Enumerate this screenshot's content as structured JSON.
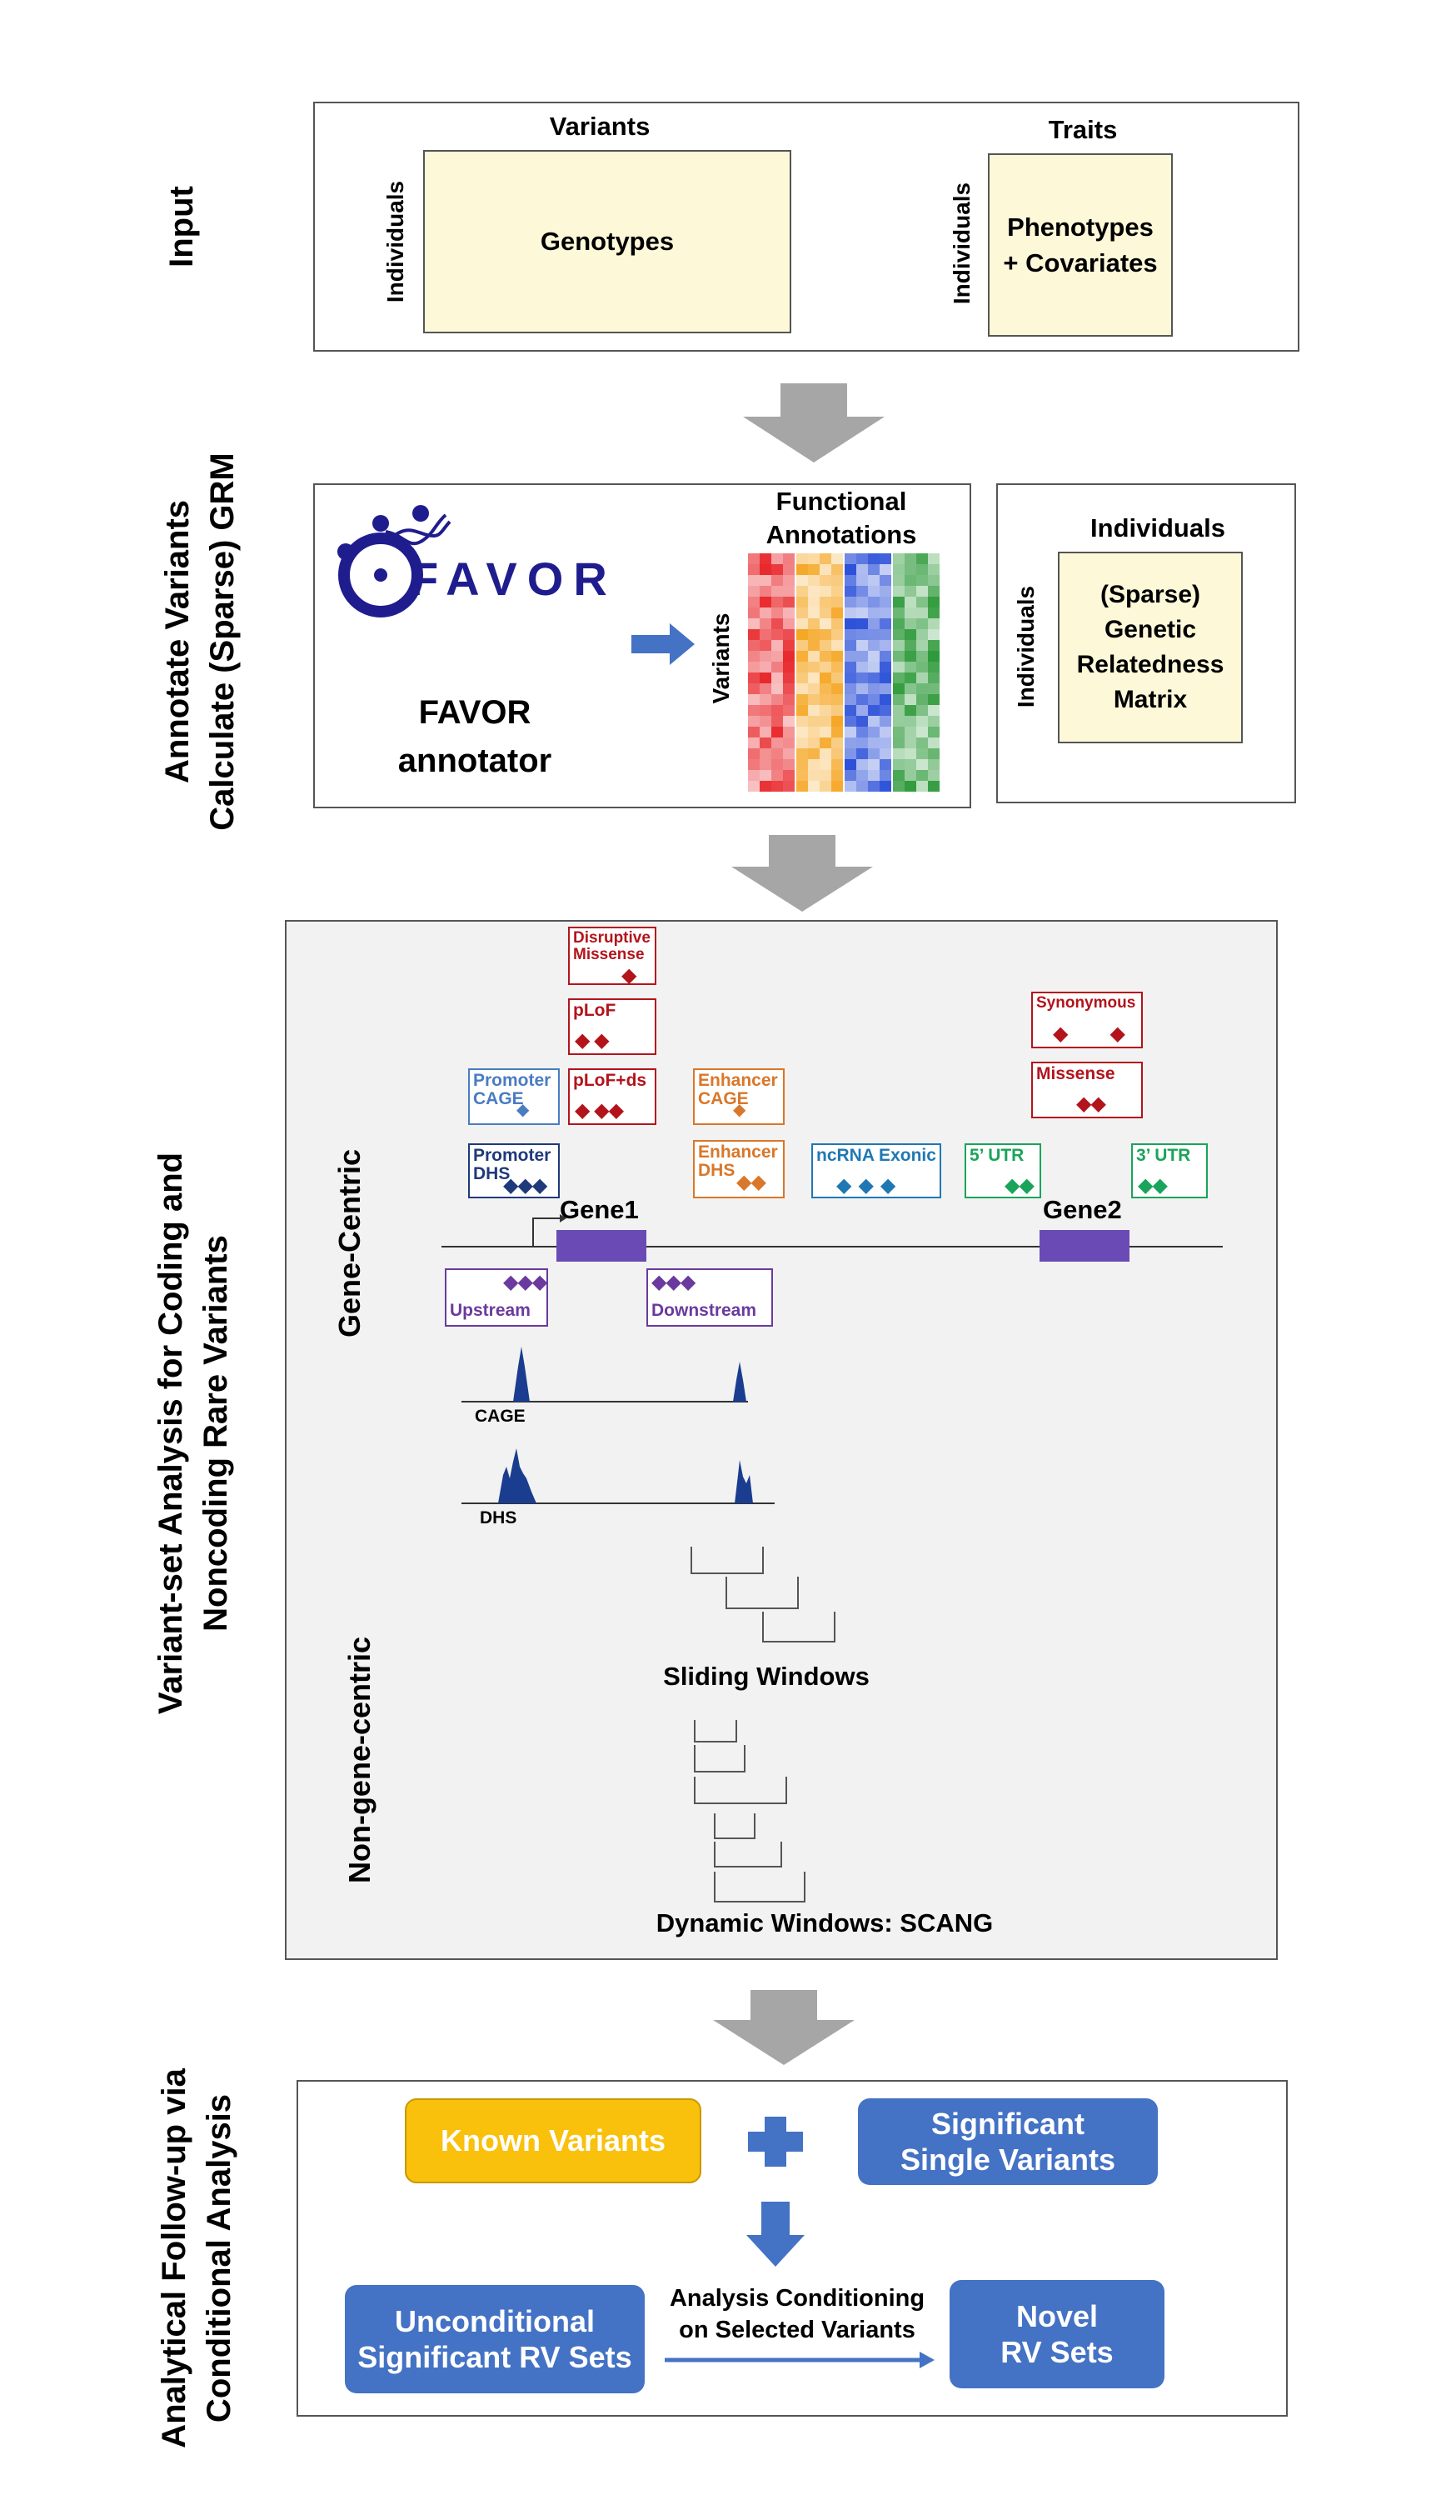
{
  "sections": {
    "input": "Input",
    "annotate": [
      "Annotate Variants",
      "Calculate (Sparse) GRM"
    ],
    "variant_set": [
      "Variant-set Analysis for Coding and",
      "Noncoding Rare Variants"
    ],
    "followup": [
      "Analytical Follow-up via",
      "Conditional Analysis"
    ]
  },
  "input": {
    "variants_label": "Variants",
    "individuals_label": "Individuals",
    "genotypes": "Genotypes",
    "traits_label": "Traits",
    "phenotypes": [
      "Phenotypes",
      "+ Covariates"
    ]
  },
  "annotate": {
    "favor_logo": "FAVOR",
    "favor_annotator": [
      "FAVOR",
      "annotator"
    ],
    "functional_annotations": [
      "Functional",
      "Annotations"
    ],
    "variants_label": "Variants",
    "individuals_top": "Individuals",
    "individuals_side": "Individuals",
    "grm": [
      "(Sparse)",
      "Genetic",
      "Relatedness",
      "Matrix"
    ],
    "heatmap_colors": [
      "#e8262a",
      "#f5a623",
      "#2a4fd8",
      "#2f9a3b"
    ]
  },
  "analysis": {
    "gene_centric": "Gene-Centric",
    "non_gene_centric": "Non-gene-centric",
    "gene1": "Gene1",
    "gene2": "Gene2",
    "disruptive_missense": [
      "Disruptive",
      "Missense"
    ],
    "plof": "pLoF",
    "plof_ds": "pLoF+ds",
    "promoter_cage": [
      "Promoter",
      "CAGE"
    ],
    "promoter_dhs": [
      "Promoter",
      "DHS"
    ],
    "enhancer_cage": [
      "Enhancer",
      "CAGE"
    ],
    "enhancer_dhs": [
      "Enhancer",
      "DHS"
    ],
    "ncrna_exonic": "ncRNA Exonic",
    "utr5": "5’ UTR",
    "utr3": "3’ UTR",
    "synonymous": "Synonymous",
    "missense": "Missense",
    "upstream": "Upstream",
    "downstream": "Downstream",
    "cage_track": "CAGE",
    "dhs_track": "DHS",
    "sliding_windows": "Sliding Windows",
    "dynamic_windows": "Dynamic Windows: SCANG",
    "colors": {
      "coding_red": "#b3141c",
      "promoter_cage": "#4a7cc2",
      "promoter_dhs": "#1f3a7a",
      "enhancer": "#d9772a",
      "ncrna": "#1f78b4",
      "utr": "#1aa45a",
      "regulatory": "#6b3a9e",
      "gene_body": "#6a4bb5",
      "peak": "#1a3d8f"
    }
  },
  "followup": {
    "known_variants": "Known Variants",
    "significant_single": [
      "Significant",
      "Single Variants"
    ],
    "unconditional": [
      "Unconditional",
      "Significant RV Sets"
    ],
    "conditioning": [
      "Analysis Conditioning",
      "on Selected Variants"
    ],
    "novel": [
      "Novel",
      "RV Sets"
    ],
    "colors": {
      "known": "#f9c00c",
      "blue": "#4472c4"
    }
  }
}
